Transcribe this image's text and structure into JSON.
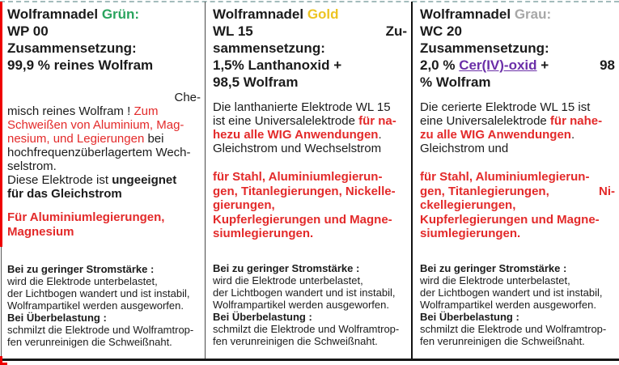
{
  "colors": {
    "green": "#2aa45e",
    "gold": "#edc422",
    "gray": "#a7a7a7",
    "red": "#e32a2a",
    "link": "#6b2fa8",
    "dash": "#a3bcbc",
    "leftred": "#ef0000"
  },
  "columns": [
    {
      "name": "gruen",
      "blocks": [
        {
          "cls": "h",
          "mt": 0,
          "name": "header",
          "lines": [
            {
              "segs": [
                {
                  "t": "Wolframnadel ",
                  "s": "k"
                },
                {
                  "t": "Grün:",
                  "s": "green"
                }
              ]
            },
            {
              "segs": [
                {
                  "t": "WP 00",
                  "s": "k"
                }
              ]
            },
            {
              "segs": [
                {
                  "t": "Zusammensetzung:",
                  "s": "k"
                }
              ]
            },
            {
              "segs": [
                {
                  "t": "99,9 % reines Wolfram",
                  "s": "k"
                }
              ]
            }
          ]
        },
        {
          "cls": "body",
          "mt": 21,
          "name": "description",
          "lines": [
            {
              "align": "right",
              "segs": [
                {
                  "t": "Che-",
                  "s": "k"
                }
              ]
            },
            {
              "segs": [
                {
                  "t": "misch reines Wolfram ! ",
                  "s": "k"
                },
                {
                  "t": "Zum",
                  "s": "r"
                }
              ]
            },
            {
              "segs": [
                {
                  "t": "Schweißen von Aluminium, Mag-",
                  "s": "r"
                }
              ]
            },
            {
              "segs": [
                {
                  "t": "nesium, und Legierungen ",
                  "s": "r"
                },
                {
                  "t": "bei",
                  "s": "k"
                }
              ]
            },
            {
              "segs": [
                {
                  "t": "hochfrequenzüberlagertem Wech-",
                  "s": "k"
                }
              ]
            },
            {
              "segs": [
                {
                  "t": "selstrom.",
                  "s": "k"
                }
              ]
            },
            {
              "segs": [
                {
                  "t": "Diese Elektrode ist ",
                  "s": "k"
                },
                {
                  "t": "ungeeignet",
                  "s": "kb"
                }
              ]
            },
            {
              "segs": [
                {
                  "t": "für das Gleichstrom",
                  "s": "kb"
                }
              ]
            }
          ]
        },
        {
          "cls": "redp",
          "mt": 12,
          "name": "applications",
          "lines": [
            {
              "segs": [
                {
                  "t": "Für Aluminiumlegierungen,",
                  "s": "rb"
                }
              ]
            },
            {
              "segs": [
                {
                  "t": "Magnesium",
                  "s": "rb"
                }
              ]
            }
          ]
        },
        {
          "cls": "small",
          "mt": 30,
          "name": "warnings",
          "lines": [
            {
              "segs": [
                {
                  "t": "Bei zu geringer Stromstärke :",
                  "s": "kb"
                }
              ]
            },
            {
              "segs": [
                {
                  "t": "wird die Elektrode unterbelastet,",
                  "s": "k"
                }
              ]
            },
            {
              "segs": [
                {
                  "t": "der Lichtbogen wandert und ist instabil,",
                  "s": "k"
                }
              ]
            },
            {
              "segs": [
                {
                  "t": "Wolframpartikel werden ausgeworfen.",
                  "s": "k"
                }
              ]
            },
            {
              "segs": [
                {
                  "t": "Bei Überbelastung :",
                  "s": "kb"
                }
              ]
            },
            {
              "segs": [
                {
                  "t": "schmilzt die Elektrode und Wolframtrop-",
                  "s": "k"
                }
              ]
            },
            {
              "segs": [
                {
                  "t": "fen verunreinigen die Schweißnaht.",
                  "s": "k"
                }
              ]
            }
          ]
        }
      ]
    },
    {
      "name": "gold",
      "blocks": [
        {
          "cls": "h",
          "mt": 0,
          "name": "header",
          "lines": [
            {
              "segs": [
                {
                  "t": "Wolframnadel ",
                  "s": "k"
                },
                {
                  "t": "Gold",
                  "s": "gold"
                }
              ]
            },
            {
              "align": "split",
              "segs": [
                {
                  "t": "WL 15",
                  "s": "k"
                }
              ],
              "right": [
                {
                  "t": "Zu-",
                  "s": "k"
                }
              ]
            },
            {
              "segs": [
                {
                  "t": "sammensetzung:",
                  "s": "k"
                }
              ]
            },
            {
              "segs": [
                {
                  "t": "1,5% Lanthanoxid +",
                  "s": "k"
                }
              ]
            },
            {
              "segs": [
                {
                  "t": "98,5 Wolfram",
                  "s": "k"
                }
              ]
            }
          ]
        },
        {
          "cls": "body",
          "mt": 12,
          "name": "description",
          "lines": [
            {
              "segs": [
                {
                  "t": "Die lanthanierte Elektrode WL 15",
                  "s": "k"
                }
              ]
            },
            {
              "segs": [
                {
                  "t": "ist eine Universalelektrode ",
                  "s": "k"
                },
                {
                  "t": "für na-",
                  "s": "rb"
                }
              ]
            },
            {
              "segs": [
                {
                  "t": "hezu alle WIG Anwendungen",
                  "s": "rb"
                },
                {
                  "t": ".",
                  "s": "k"
                }
              ]
            },
            {
              "segs": [
                {
                  "t": "Gleichstrom und Wechselstrom",
                  "s": "k"
                }
              ]
            }
          ]
        },
        {
          "cls": "redp",
          "mt": 18,
          "name": "applications",
          "lines": [
            {
              "segs": [
                {
                  "t": "für Stahl, Aluminiumlegierun-",
                  "s": "rb"
                }
              ]
            },
            {
              "segs": [
                {
                  "t": "gen, Titanlegierungen, Nickelle-",
                  "s": "rb"
                }
              ]
            },
            {
              "segs": [
                {
                  "t": "gierungen,",
                  "s": "rb"
                }
              ]
            },
            {
              "segs": [
                {
                  "t": "Kupferlegierungen und Magne-",
                  "s": "rb"
                }
              ]
            },
            {
              "segs": [
                {
                  "t": "siumlegierungen.",
                  "s": "rb"
                }
              ]
            }
          ]
        },
        {
          "cls": "small",
          "mt": 26,
          "name": "warnings",
          "lines": [
            {
              "segs": [
                {
                  "t": "Bei zu geringer Stromstärke :",
                  "s": "kb"
                }
              ]
            },
            {
              "segs": [
                {
                  "t": "wird die Elektrode unterbelastet,",
                  "s": "k"
                }
              ]
            },
            {
              "segs": [
                {
                  "t": "der Lichtbogen wandert und ist instabil,",
                  "s": "k"
                }
              ]
            },
            {
              "segs": [
                {
                  "t": "Wolframpartikel werden ausgeworfen.",
                  "s": "k"
                }
              ]
            },
            {
              "segs": [
                {
                  "t": "Bei Überbelastung :",
                  "s": "kb"
                }
              ]
            },
            {
              "segs": [
                {
                  "t": "schmilzt die Elektrode und Wolframtrop-",
                  "s": "k"
                }
              ]
            },
            {
              "segs": [
                {
                  "t": "fen verunreinigen die Schweißnaht.",
                  "s": "k"
                }
              ]
            }
          ]
        }
      ]
    },
    {
      "name": "grau",
      "blocks": [
        {
          "cls": "h",
          "mt": 0,
          "name": "header",
          "lines": [
            {
              "segs": [
                {
                  "t": "Wolframnadel ",
                  "s": "k"
                },
                {
                  "t": "Grau:",
                  "s": "gray"
                }
              ]
            },
            {
              "segs": [
                {
                  "t": "WC 20",
                  "s": "k"
                }
              ]
            },
            {
              "segs": [
                {
                  "t": "Zusammensetzung:",
                  "s": "k"
                }
              ]
            },
            {
              "align": "split",
              "segs": [
                {
                  "t": "2,0 % ",
                  "s": "k"
                },
                {
                  "t": "Cer(IV)-oxid",
                  "s": "link",
                  "name": "cer-iv-oxid-link",
                  "interactable": true
                },
                {
                  "t": " +",
                  "s": "k"
                }
              ],
              "right": [
                {
                  "t": "98",
                  "s": "k"
                }
              ]
            },
            {
              "segs": [
                {
                  "t": "% Wolfram",
                  "s": "k"
                }
              ]
            }
          ]
        },
        {
          "cls": "body",
          "mt": 12,
          "name": "description",
          "lines": [
            {
              "segs": [
                {
                  "t": "Die cerierte Elektrode WL 15 ist",
                  "s": "k"
                }
              ]
            },
            {
              "segs": [
                {
                  "t": "eine Universalelektrode ",
                  "s": "k"
                },
                {
                  "t": "für nahe-",
                  "s": "rb"
                }
              ]
            },
            {
              "segs": [
                {
                  "t": "zu alle WIG Anwendungen",
                  "s": "rb"
                },
                {
                  "t": ".",
                  "s": "k"
                }
              ]
            },
            {
              "segs": [
                {
                  "t": "Gleichstrom und",
                  "s": "k"
                }
              ]
            }
          ]
        },
        {
          "cls": "redp",
          "mt": 18,
          "name": "applications",
          "lines": [
            {
              "segs": [
                {
                  "t": "für Stahl, Aluminiumlegierun-",
                  "s": "rb"
                }
              ]
            },
            {
              "align": "split",
              "segs": [
                {
                  "t": "gen, Titanlegierungen,",
                  "s": "rb"
                }
              ],
              "right": [
                {
                  "t": "Ni-",
                  "s": "rb"
                }
              ]
            },
            {
              "segs": [
                {
                  "t": "ckellegierungen,",
                  "s": "rb"
                }
              ]
            },
            {
              "segs": [
                {
                  "t": "Kupferlegierungen und Magne-",
                  "s": "rb"
                }
              ]
            },
            {
              "segs": [
                {
                  "t": "siumlegierungen.",
                  "s": "rb"
                }
              ]
            }
          ]
        },
        {
          "cls": "small",
          "mt": 26,
          "name": "warnings",
          "lines": [
            {
              "segs": [
                {
                  "t": "Bei zu geringer Stromstärke :",
                  "s": "kb"
                }
              ]
            },
            {
              "segs": [
                {
                  "t": "wird die Elektrode unterbelastet,",
                  "s": "k"
                }
              ]
            },
            {
              "segs": [
                {
                  "t": "der Lichtbogen wandert und ist instabil,",
                  "s": "k"
                }
              ]
            },
            {
              "segs": [
                {
                  "t": "Wolframpartikel werden ausgeworfen.",
                  "s": "k"
                }
              ]
            },
            {
              "segs": [
                {
                  "t": "Bei Überbelastung :",
                  "s": "kb"
                }
              ]
            },
            {
              "segs": [
                {
                  "t": "schmilzt die Elektrode und Wolframtrop-",
                  "s": "k"
                }
              ]
            },
            {
              "segs": [
                {
                  "t": "fen verunreinigen die Schweißnaht.",
                  "s": "k"
                }
              ]
            }
          ]
        }
      ]
    }
  ]
}
